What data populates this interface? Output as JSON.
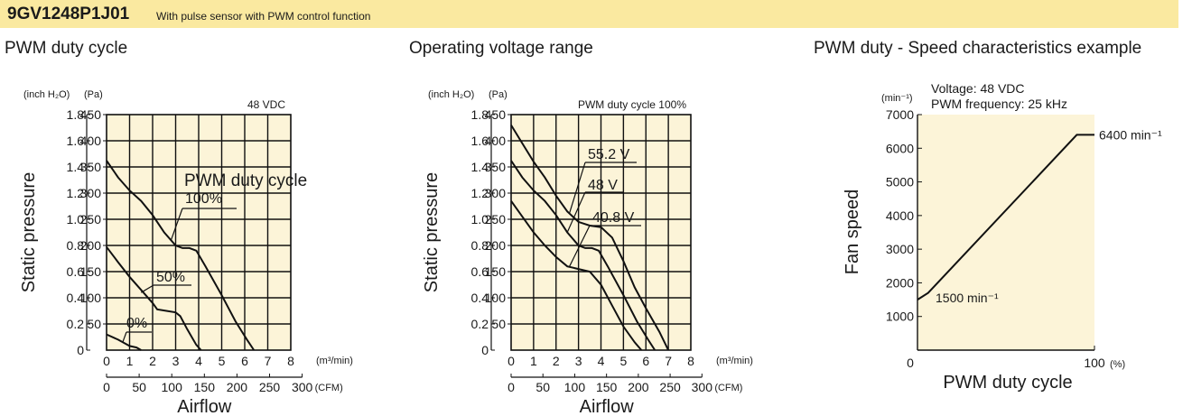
{
  "header": {
    "model": "9GV1248P1J01",
    "subtitle": "With pulse sensor with PWM control function"
  },
  "chart_data": [
    {
      "type": "line",
      "title": "PWM duty cycle",
      "ylabel": "Static pressure",
      "xlabel": "Airflow",
      "y_units": [
        "(inch H₂O)",
        "(Pa)"
      ],
      "x_units": [
        "(m³/min)",
        "(CFM)"
      ],
      "y_ticks_inchH2O": [
        "1.8",
        "1.6",
        "1.4",
        "1.2",
        "1.0",
        "0.8",
        "0.6",
        "0.4",
        "0.2",
        "0"
      ],
      "y_ticks_pa": [
        "450",
        "400",
        "350",
        "300",
        "250",
        "200",
        "150",
        "100",
        "50"
      ],
      "x_ticks_m3min": [
        "0",
        "1",
        "2",
        "3",
        "4",
        "5",
        "6",
        "7",
        "8"
      ],
      "x_ticks_cfm": [
        "0",
        "50",
        "100",
        "150",
        "200",
        "250",
        "300"
      ],
      "xlim": [
        0,
        8
      ],
      "ylim": [
        0,
        450
      ],
      "grid": true,
      "annotation": "48 VDC",
      "legend_title": "PWM duty cycle",
      "series": [
        {
          "name": "100%",
          "x": [
            0,
            0.5,
            1,
            1.5,
            2,
            2.5,
            3,
            3.3,
            3.6,
            3.9,
            4.3,
            5,
            5.6,
            6.1,
            6.4
          ],
          "y": [
            362,
            330,
            305,
            285,
            258,
            225,
            200,
            195,
            195,
            190,
            160,
            105,
            55,
            20,
            0
          ]
        },
        {
          "name": "50%",
          "x": [
            0,
            0.5,
            1,
            1.5,
            2,
            2.2,
            2.6,
            3,
            3.2,
            3.5,
            3.9,
            4.1
          ],
          "y": [
            197,
            168,
            140,
            115,
            90,
            78,
            75,
            72,
            65,
            40,
            10,
            0
          ]
        },
        {
          "name": "0%",
          "x": [
            0,
            0.5,
            1,
            1.3,
            1.5
          ],
          "y": [
            30,
            20,
            8,
            5,
            0
          ]
        }
      ]
    },
    {
      "type": "line",
      "title": "Operating voltage range",
      "ylabel": "Static pressure",
      "xlabel": "Airflow",
      "y_units": [
        "(inch H₂O)",
        "(Pa)"
      ],
      "x_units": [
        "(m³/min)",
        "(CFM)"
      ],
      "y_ticks_inchH2O": [
        "1.8",
        "1.6",
        "1.4",
        "1.2",
        "1.0",
        "0.8",
        "0.6",
        "0.4",
        "0.2",
        "0"
      ],
      "y_ticks_pa": [
        "450",
        "400",
        "350",
        "300",
        "250",
        "200",
        "150",
        "100",
        "50"
      ],
      "x_ticks_m3min": [
        "0",
        "1",
        "2",
        "3",
        "4",
        "5",
        "6",
        "7",
        "8"
      ],
      "x_ticks_cfm": [
        "0",
        "50",
        "100",
        "150",
        "200",
        "250",
        "300"
      ],
      "xlim": [
        0,
        8
      ],
      "ylim": [
        0,
        450
      ],
      "grid": true,
      "annotation": "PWM duty cycle 100%",
      "series": [
        {
          "name": "55.2 V",
          "x": [
            0,
            0.5,
            1,
            1.5,
            2,
            2.5,
            3,
            3.5,
            4,
            4.5,
            5,
            5.5,
            6,
            6.6,
            7
          ],
          "y": [
            430,
            395,
            360,
            330,
            295,
            265,
            245,
            238,
            235,
            215,
            170,
            120,
            80,
            35,
            0
          ]
        },
        {
          "name": "48 V",
          "x": [
            0,
            0.5,
            1,
            1.5,
            2,
            2.5,
            3,
            3.3,
            3.6,
            3.9,
            4.3,
            5,
            5.6,
            6.1,
            6.4
          ],
          "y": [
            362,
            330,
            305,
            285,
            258,
            225,
            200,
            195,
            195,
            190,
            160,
            105,
            55,
            20,
            0
          ]
        },
        {
          "name": "40.8 V",
          "x": [
            0,
            0.5,
            1,
            1.5,
            2,
            2.5,
            3,
            3.5,
            4,
            4.5,
            5,
            5.5,
            5.8
          ],
          "y": [
            285,
            255,
            225,
            200,
            178,
            160,
            155,
            150,
            125,
            85,
            45,
            15,
            0
          ]
        }
      ]
    },
    {
      "type": "line",
      "title": "PWM duty - Speed characteristics example",
      "ylabel": "Fan speed",
      "xlabel": "PWM duty cycle",
      "y_unit": "(min⁻¹)",
      "x_unit": "(%)",
      "y_ticks": [
        "7000",
        "6000",
        "5000",
        "4000",
        "3000",
        "2000",
        "1000"
      ],
      "x_ticks": [
        "0",
        "100"
      ],
      "xlim": [
        0,
        100
      ],
      "ylim": [
        0,
        7000
      ],
      "grid": false,
      "annotations": [
        "Voltage: 48 VDC",
        "PWM frequency: 25 kHz"
      ],
      "point_labels": [
        "6400 min⁻¹",
        "1500 min⁻¹"
      ],
      "series": [
        {
          "x": [
            0,
            6,
            90,
            100
          ],
          "y": [
            1500,
            1700,
            6400,
            6400
          ]
        }
      ]
    }
  ]
}
